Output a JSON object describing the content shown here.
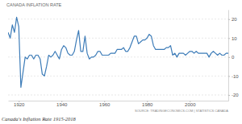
{
  "chart_data": {
    "type": "line",
    "title": "CANADA INFLATION RATE",
    "source": "SOURCE: TRADINGECONOMICS.COM | STATISTICS CANADA",
    "caption": "Canada's Inflation Rate 1915-2018",
    "color": "#3d7cb8",
    "grid": true,
    "x": [
      1915,
      1916,
      1917,
      1918,
      1919,
      1920,
      1921,
      1922,
      1923,
      1924,
      1925,
      1926,
      1927,
      1928,
      1929,
      1930,
      1931,
      1932,
      1933,
      1934,
      1935,
      1936,
      1937,
      1938,
      1939,
      1940,
      1941,
      1942,
      1943,
      1944,
      1945,
      1946,
      1947,
      1948,
      1949,
      1950,
      1951,
      1952,
      1953,
      1954,
      1955,
      1956,
      1957,
      1958,
      1959,
      1960,
      1961,
      1962,
      1963,
      1964,
      1965,
      1966,
      1967,
      1968,
      1969,
      1970,
      1971,
      1972,
      1973,
      1974,
      1975,
      1976,
      1977,
      1978,
      1979,
      1980,
      1981,
      1982,
      1983,
      1984,
      1985,
      1986,
      1987,
      1988,
      1989,
      1990,
      1991,
      1992,
      1993,
      1994,
      1995,
      1996,
      1997,
      1998,
      1999,
      2000,
      2001,
      2002,
      2003,
      2004,
      2005,
      2006,
      2007,
      2008,
      2009,
      2010,
      2011,
      2012,
      2013,
      2014,
      2015,
      2016,
      2017,
      2018
    ],
    "values": [
      13,
      10,
      17,
      13,
      21,
      16,
      -16,
      -8,
      0,
      -1,
      1,
      1,
      -1,
      1,
      1,
      -1,
      -9,
      -10,
      -5,
      1,
      0,
      1,
      3,
      1,
      -1,
      4,
      6,
      5,
      2,
      1,
      1,
      3,
      9,
      14,
      3,
      3,
      11,
      2,
      -1,
      0,
      0,
      1,
      3,
      3,
      1,
      1,
      1,
      1,
      2,
      2,
      2,
      4,
      4,
      4,
      5,
      3,
      3,
      5,
      8,
      11,
      11,
      7,
      8,
      9,
      9,
      10,
      12,
      11,
      6,
      4,
      4,
      4,
      4,
      4,
      5,
      5,
      6,
      1,
      2,
      0,
      2,
      2,
      2,
      1,
      2,
      3,
      3,
      2,
      3,
      2,
      2,
      2,
      2,
      2,
      0,
      2,
      3,
      2,
      1,
      2,
      1,
      1,
      2,
      2
    ],
    "xlim": [
      1915,
      2018
    ],
    "xticks": [
      1920,
      1940,
      1960,
      1980,
      2000
    ],
    "ylim": [
      -23,
      25
    ],
    "yticks": [
      -20,
      -10,
      0,
      10,
      20
    ]
  }
}
